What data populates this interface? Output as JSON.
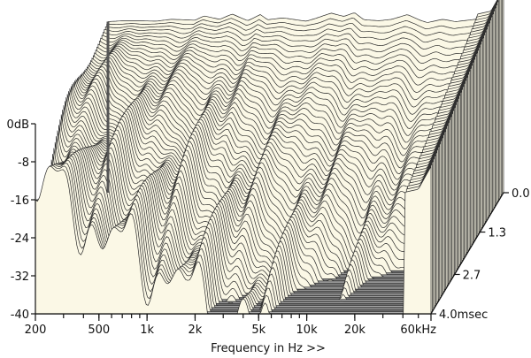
{
  "chart_data": {
    "type": "area",
    "title": "",
    "subtitle": "",
    "xlabel": "Frequency in Hz >>",
    "ylabel": "",
    "zlabel": "",
    "x_scale": "log",
    "xlim": [
      200,
      60000
    ],
    "ylim": [
      -40,
      0
    ],
    "zlim": [
      0,
      4.0
    ],
    "x_ticks": [
      "200",
      "500",
      "1k",
      "2k",
      "5k",
      "10k",
      "20k",
      "60kHz"
    ],
    "x_tick_values": [
      200,
      500,
      1000,
      2000,
      5000,
      10000,
      20000,
      60000
    ],
    "y_ticks": [
      "0dB",
      "-8",
      "-16",
      "-24",
      "-32",
      "-40"
    ],
    "y_tick_values": [
      0,
      -8,
      -16,
      -24,
      -32,
      -40
    ],
    "z_ticks": [
      "0.0",
      "1.3",
      "2.7",
      "4.0msec"
    ],
    "z_tick_values": [
      0.0,
      1.3,
      2.7,
      4.0
    ],
    "grid": false,
    "legend": "none",
    "series": [
      {
        "time_ms": 0.0,
        "x": [
          200,
          250,
          300,
          400,
          500,
          600,
          700,
          800,
          1000,
          1200,
          1500,
          1800,
          2000,
          2500,
          3000,
          3500,
          4000,
          5000,
          6000,
          7000,
          8000,
          10000,
          12000,
          15000,
          18000,
          20000,
          25000,
          30000,
          40000,
          50000,
          60000
        ],
        "values": [
          -4,
          -3.8,
          -3.8,
          -3.9,
          -3.5,
          -3.6,
          -3.7,
          -2.8,
          -3.5,
          -2.4,
          -3.8,
          -2.5,
          -3.6,
          -3.2,
          -3.6,
          -3.9,
          -3.3,
          -2.2,
          -2.9,
          -2.1,
          -3.6,
          -3.8,
          -3.5,
          -2.5,
          -3.7,
          -4.2,
          -3.5,
          -4.0,
          -3.5,
          -2.8,
          2.0
        ]
      }
    ]
  },
  "colors": {
    "surface_fill": "#fbf8e6",
    "waterfall_line": "#2b2b2b",
    "floor_light": "#a9a9a9",
    "floor_dark": "#6e6e6e",
    "wall": "#555555",
    "axis": "#111111"
  }
}
